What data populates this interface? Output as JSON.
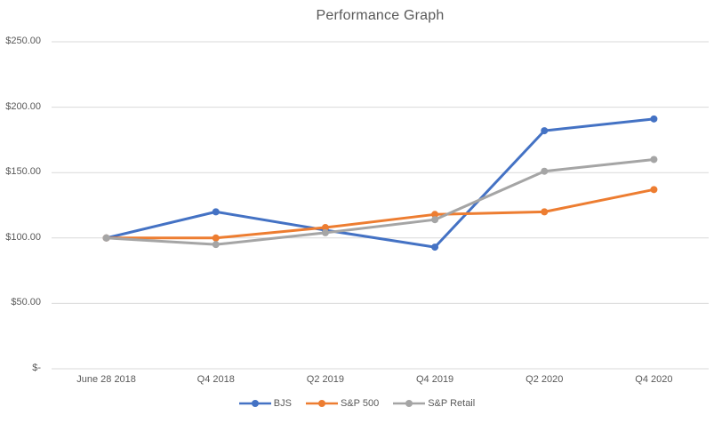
{
  "title": "Performance Graph",
  "colors": {
    "background": "#FFFFFF",
    "gridline": "#D9D9D9",
    "axis_line": "#D9D9D9",
    "text": "#595959",
    "series_bjs": "#4472C4",
    "series_sp500": "#ED7D31",
    "series_sp_retail": "#A5A5A5"
  },
  "chart_data": {
    "type": "line",
    "title": "Performance Graph",
    "xlabel": "",
    "ylabel": "",
    "categories": [
      "June 28 2018",
      "Q4 2018",
      "Q2 2019",
      "Q4 2019",
      "Q2 2020",
      "Q4 2020"
    ],
    "series": [
      {
        "name": "BJS",
        "color": "#4472C4",
        "values": [
          100,
          120,
          106,
          93,
          182,
          191
        ]
      },
      {
        "name": "S&P 500",
        "color": "#ED7D31",
        "values": [
          100,
          100,
          108,
          118,
          120,
          137
        ]
      },
      {
        "name": "S&P Retail",
        "color": "#A5A5A5",
        "values": [
          100,
          95,
          104,
          114,
          151,
          160
        ]
      }
    ],
    "ylim": [
      0,
      250
    ],
    "yticks": [
      {
        "value": 250,
        "label": "$250.00"
      },
      {
        "value": 200,
        "label": "$200.00"
      },
      {
        "value": 150,
        "label": "$150.00"
      },
      {
        "value": 100,
        "label": "$100.00"
      },
      {
        "value": 50,
        "label": "$50.00"
      },
      {
        "value": 0,
        "label": "$-"
      }
    ],
    "grid": true,
    "legend_position": "bottom",
    "marker": "circle"
  }
}
